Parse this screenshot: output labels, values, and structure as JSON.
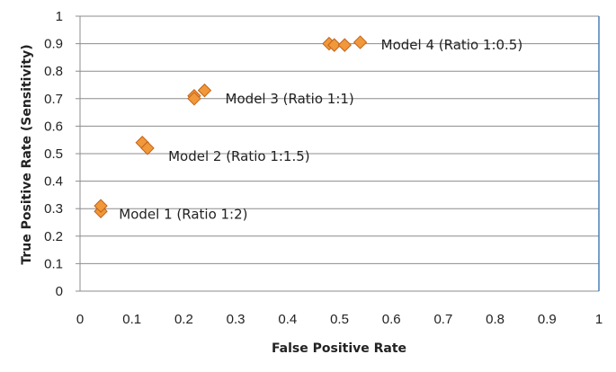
{
  "chart_data": {
    "type": "scatter",
    "xlabel": "False Positive Rate",
    "ylabel": "True Positive Rate (Sensitivity)",
    "xlim": [
      0,
      1
    ],
    "ylim": [
      0,
      1
    ],
    "x_ticks": [
      "0",
      "0.1",
      "0.2",
      "0.3",
      "0.4",
      "0.5",
      "0.6",
      "0.7",
      "0.8",
      "0.9",
      "1"
    ],
    "y_ticks": [
      "0",
      "0.1",
      "0.2",
      "0.3",
      "0.4",
      "0.5",
      "0.6",
      "0.7",
      "0.8",
      "0.9",
      "1"
    ],
    "grid": "horizontal",
    "colors": {
      "marker_fill": "#F0983A",
      "marker_stroke": "#C2641A",
      "gridline": "#8C8C8C",
      "axis": "#8C8C8C",
      "right_axis": "#4A7EBB"
    },
    "series": [
      {
        "points": [
          {
            "x": 0.04,
            "y": 0.29
          },
          {
            "x": 0.04,
            "y": 0.31
          },
          {
            "x": 0.12,
            "y": 0.54
          },
          {
            "x": 0.13,
            "y": 0.52
          },
          {
            "x": 0.22,
            "y": 0.71
          },
          {
            "x": 0.22,
            "y": 0.7
          },
          {
            "x": 0.24,
            "y": 0.73
          },
          {
            "x": 0.48,
            "y": 0.9
          },
          {
            "x": 0.49,
            "y": 0.895
          },
          {
            "x": 0.51,
            "y": 0.895
          },
          {
            "x": 0.54,
            "y": 0.905
          }
        ]
      }
    ],
    "annotations": [
      {
        "text": "Model 1 (Ratio 1:2)",
        "x": 0.075,
        "y": 0.28
      },
      {
        "text": "Model 2 (Ratio 1:1.5)",
        "x": 0.17,
        "y": 0.49
      },
      {
        "text": "Model 3 (Ratio 1:1)",
        "x": 0.28,
        "y": 0.7
      },
      {
        "text": "Model 4 (Ratio 1:0.5)",
        "x": 0.58,
        "y": 0.895
      }
    ]
  }
}
